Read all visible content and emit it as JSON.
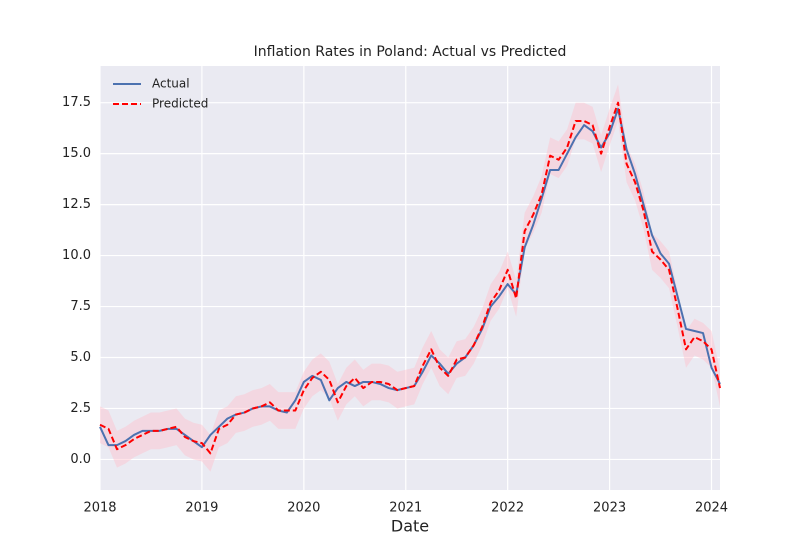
{
  "chart_data": {
    "type": "line",
    "title": "Inflation Rates in Poland: Actual vs Predicted",
    "xlabel": "Date",
    "x": [
      "2018-01",
      "2018-02",
      "2018-03",
      "2018-04",
      "2018-05",
      "2018-06",
      "2018-07",
      "2018-08",
      "2018-09",
      "2018-10",
      "2018-11",
      "2018-12",
      "2019-01",
      "2019-02",
      "2019-03",
      "2019-04",
      "2019-05",
      "2019-06",
      "2019-07",
      "2019-08",
      "2019-09",
      "2019-10",
      "2019-11",
      "2019-12",
      "2020-01",
      "2020-02",
      "2020-03",
      "2020-04",
      "2020-05",
      "2020-06",
      "2020-07",
      "2020-08",
      "2020-09",
      "2020-10",
      "2020-11",
      "2020-12",
      "2021-01",
      "2021-02",
      "2021-03",
      "2021-04",
      "2021-05",
      "2021-06",
      "2021-07",
      "2021-08",
      "2021-09",
      "2021-10",
      "2021-11",
      "2021-12",
      "2022-01",
      "2022-02",
      "2022-03",
      "2022-04",
      "2022-05",
      "2022-06",
      "2022-07",
      "2022-08",
      "2022-09",
      "2022-10",
      "2022-11",
      "2022-12",
      "2023-01",
      "2023-02",
      "2023-03",
      "2023-04",
      "2023-05",
      "2023-06",
      "2023-07",
      "2023-08",
      "2023-09",
      "2023-10",
      "2023-11",
      "2023-12",
      "2024-01",
      "2024-02"
    ],
    "series": [
      {
        "name": "Actual",
        "color": "#4c72b0",
        "linestyle": "solid",
        "values": [
          1.6,
          0.7,
          0.7,
          0.9,
          1.2,
          1.4,
          1.4,
          1.4,
          1.5,
          1.5,
          1.2,
          0.9,
          0.6,
          1.2,
          1.6,
          2.0,
          2.2,
          2.3,
          2.5,
          2.6,
          2.6,
          2.4,
          2.3,
          2.9,
          3.8,
          4.1,
          3.9,
          2.9,
          3.5,
          3.8,
          3.6,
          3.8,
          3.8,
          3.7,
          3.5,
          3.4,
          3.5,
          3.6,
          4.3,
          5.1,
          4.7,
          4.2,
          4.7,
          5.0,
          5.6,
          6.4,
          7.5,
          8.0,
          8.6,
          8.1,
          10.4,
          11.5,
          12.8,
          14.2,
          14.2,
          15.0,
          15.8,
          16.4,
          16.1,
          15.3,
          16.0,
          17.2,
          15.2,
          14.0,
          12.5,
          11.0,
          10.1,
          9.6,
          8.0,
          6.4,
          6.3,
          6.2,
          4.5,
          3.7
        ]
      },
      {
        "name": "Predicted",
        "color": "#ff0000",
        "linestyle": "dashed",
        "interval": 0.9,
        "interval_color": "#ffc0cb",
        "values": [
          1.7,
          1.5,
          0.5,
          0.7,
          1.0,
          1.2,
          1.4,
          1.4,
          1.5,
          1.6,
          1.1,
          0.9,
          0.8,
          0.3,
          1.5,
          1.7,
          2.2,
          2.3,
          2.5,
          2.6,
          2.8,
          2.4,
          2.4,
          2.4,
          3.4,
          4.0,
          4.3,
          3.9,
          2.8,
          3.6,
          4.0,
          3.5,
          3.8,
          3.8,
          3.7,
          3.4,
          3.5,
          3.6,
          4.6,
          5.4,
          4.5,
          4.1,
          4.9,
          5.0,
          5.6,
          6.5,
          7.7,
          8.3,
          9.3,
          7.9,
          11.2,
          12.0,
          13.0,
          14.9,
          14.7,
          15.3,
          16.6,
          16.6,
          16.4,
          15.0,
          16.3,
          17.5,
          14.5,
          13.6,
          12.2,
          10.2,
          9.8,
          9.3,
          7.4,
          5.4,
          6.0,
          5.8,
          5.4,
          3.5
        ]
      }
    ],
    "xlim": [
      "2018-01",
      "2024-02"
    ],
    "xticks": [
      {
        "value": "2018-01",
        "label": "2018"
      },
      {
        "value": "2019-01",
        "label": "2019"
      },
      {
        "value": "2020-01",
        "label": "2020"
      },
      {
        "value": "2021-01",
        "label": "2021"
      },
      {
        "value": "2022-01",
        "label": "2022"
      },
      {
        "value": "2023-01",
        "label": "2023"
      },
      {
        "value": "2024-01",
        "label": "2024"
      }
    ],
    "ylim": [
      -1.5,
      19.3
    ],
    "yticks": [
      {
        "value": 0,
        "label": "0.0"
      },
      2.5,
      {
        "value": 5,
        "label": "5.0"
      },
      7.5,
      {
        "value": 10,
        "label": "10.0"
      },
      12.5,
      {
        "value": 15,
        "label": "15.0"
      },
      17.5
    ],
    "grid": true,
    "legend": "upper left"
  }
}
